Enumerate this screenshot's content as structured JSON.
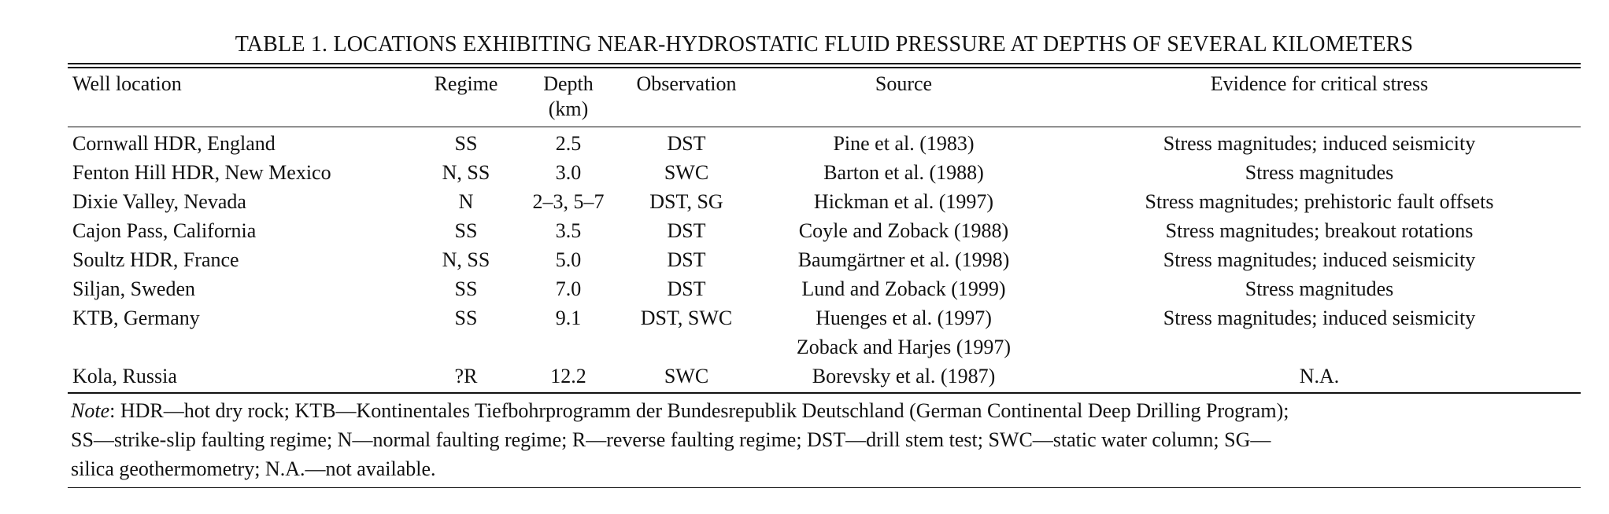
{
  "caption": "TABLE 1.  LOCATIONS EXHIBITING NEAR-HYDROSTATIC FLUID PRESSURE AT DEPTHS OF SEVERAL KILOMETERS",
  "columns": {
    "location": "Well location",
    "regime": "Regime",
    "depth_line1": "Depth",
    "depth_line2": "(km)",
    "observation": "Observation",
    "source": "Source",
    "evidence": "Evidence for critical stress"
  },
  "rows": [
    {
      "location": "Cornwall HDR, England",
      "regime": "SS",
      "depth": "2.5",
      "observation": "DST",
      "source": [
        "Pine et al. (1983)"
      ],
      "evidence": "Stress magnitudes;  induced seismicity"
    },
    {
      "location": "Fenton Hill HDR, New Mexico",
      "regime": "N, SS",
      "depth": "3.0",
      "observation": "SWC",
      "source": [
        "Barton et al. (1988)"
      ],
      "evidence": "Stress magnitudes"
    },
    {
      "location": "Dixie Valley, Nevada",
      "regime": "N",
      "depth": "2–3, 5–7",
      "observation": "DST, SG",
      "source": [
        "Hickman et al. (1997)"
      ],
      "evidence": "Stress magnitudes;  prehistoric fault offsets"
    },
    {
      "location": "Cajon Pass, California",
      "regime": "SS",
      "depth": "3.5",
      "observation": "DST",
      "source": [
        "Coyle and Zoback (1988)"
      ],
      "evidence": "Stress magnitudes;  breakout rotations"
    },
    {
      "location": "Soultz HDR, France",
      "regime": "N, SS",
      "depth": "5.0",
      "observation": "DST",
      "source": [
        "Baumgärtner et al. (1998)"
      ],
      "evidence": "Stress magnitudes;  induced seismicity"
    },
    {
      "location": "Siljan, Sweden",
      "regime": "SS",
      "depth": "7.0",
      "observation": "DST",
      "source": [
        "Lund and Zoback (1999)"
      ],
      "evidence": "Stress magnitudes"
    },
    {
      "location": "KTB, Germany",
      "regime": "SS",
      "depth": "9.1",
      "observation": "DST, SWC",
      "source": [
        "Huenges et al. (1997)",
        "Zoback and Harjes (1997)"
      ],
      "evidence": "Stress magnitudes;  induced seismicity"
    },
    {
      "location": "Kola, Russia",
      "regime": "?R",
      "depth": "12.2",
      "observation": "SWC",
      "source": [
        "Borevsky et al. (1987)"
      ],
      "evidence": "N.A."
    }
  ],
  "note": {
    "label": "Note",
    "lines": [
      ": HDR—hot dry rock; KTB—Kontinentales Tiefbohrprogramm der Bundesrepublik Deutschland (German Continental Deep Drilling Program);",
      "SS—strike-slip faulting regime; N—normal faulting regime; R—reverse faulting regime; DST—drill stem test; SWC—static water column;  SG—",
      "silica geothermometry; N.A.—not available."
    ]
  }
}
